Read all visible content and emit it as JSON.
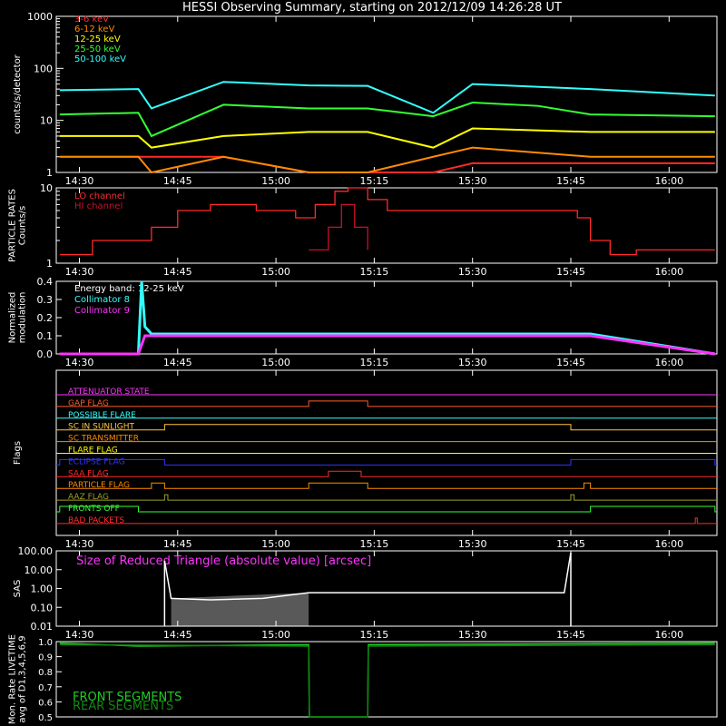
{
  "title": "HESSI Observing Summary, starting on 2012/12/09 14:26:28 UT",
  "time_ticks": [
    "14:30",
    "14:45",
    "15:00",
    "15:15",
    "15:30",
    "15:45",
    "16:00"
  ],
  "chart_data": [
    {
      "type": "line",
      "panel": "count-rates",
      "ylabel": "counts/s/detector",
      "yscale": "log",
      "ylim": [
        1,
        1000
      ],
      "y_ticks": [
        "1",
        "10",
        "100",
        "1000"
      ],
      "x_ticks": [
        "14:30",
        "14:45",
        "15:00",
        "15:15",
        "15:30",
        "15:45",
        "16:00"
      ],
      "series": [
        {
          "name": "3-6 keV",
          "color": "#ff2a2a",
          "x": [
            "14:27",
            "14:39",
            "14:52",
            "15:05",
            "15:14",
            "15:24",
            "15:30",
            "15:48",
            "16:07"
          ],
          "y": [
            2,
            2,
            2,
            1,
            1,
            1,
            1.5,
            1.5,
            1.5
          ]
        },
        {
          "name": "6-12 keV",
          "color": "#ff8c00",
          "x": [
            "14:27",
            "14:39",
            "14:41",
            "14:52",
            "15:05",
            "15:14",
            "15:24",
            "15:30",
            "15:48",
            "16:07"
          ],
          "y": [
            2,
            2,
            1,
            2,
            1,
            1,
            2,
            3,
            2,
            2
          ]
        },
        {
          "name": "12-25 keV",
          "color": "#ffff00",
          "x": [
            "14:27",
            "14:39",
            "14:41",
            "14:52",
            "15:05",
            "15:14",
            "15:24",
            "15:30",
            "15:48",
            "16:07"
          ],
          "y": [
            5,
            5,
            3,
            5,
            6,
            6,
            3,
            7,
            6,
            6
          ]
        },
        {
          "name": "25-50 keV",
          "color": "#33ff33",
          "x": [
            "14:27",
            "14:39",
            "14:41",
            "14:52",
            "15:05",
            "15:14",
            "15:24",
            "15:30",
            "15:40",
            "15:48",
            "16:07"
          ],
          "y": [
            13,
            14,
            5,
            20,
            17,
            17,
            12,
            22,
            19,
            13,
            12
          ]
        },
        {
          "name": "50-100 keV",
          "color": "#33ffff",
          "x": [
            "14:27",
            "14:39",
            "14:41",
            "14:52",
            "15:05",
            "15:14",
            "15:24",
            "15:30",
            "15:48",
            "16:07"
          ],
          "y": [
            38,
            40,
            17,
            55,
            47,
            46,
            14,
            50,
            40,
            30
          ]
        }
      ]
    },
    {
      "type": "line",
      "panel": "particle-rates",
      "ylabel": "PARTICLE RATES\nCounts/s",
      "yscale": "log",
      "ylim": [
        1,
        10
      ],
      "y_ticks": [
        "1",
        "10"
      ],
      "x_ticks": [
        "14:30",
        "14:45",
        "15:00",
        "15:15",
        "15:30",
        "15:45",
        "16:00"
      ],
      "series": [
        {
          "name": "LO channel",
          "color": "#ff2a2a",
          "x": [
            "14:27",
            "14:31",
            "14:32",
            "14:38",
            "14:41",
            "14:45",
            "14:50",
            "14:57",
            "15:03",
            "15:06",
            "15:09",
            "15:11",
            "15:14",
            "15:17",
            "15:22",
            "15:30",
            "15:38",
            "15:46",
            "15:48",
            "15:51",
            "15:55",
            "16:07"
          ],
          "y": [
            1.3,
            1.3,
            2,
            2,
            3,
            5,
            6,
            5,
            4,
            6,
            9,
            10,
            7,
            5,
            5,
            5,
            5,
            4,
            2,
            1.3,
            1.5,
            1.5
          ]
        },
        {
          "name": "HI channel",
          "color": "#c8102e",
          "x": [
            "15:05",
            "15:08",
            "15:10",
            "15:12",
            "15:14"
          ],
          "y": [
            1.5,
            3,
            6,
            3,
            1.5
          ]
        }
      ]
    },
    {
      "type": "line",
      "panel": "modulation",
      "ylabel": "Normalized\nmodulation",
      "ylim": [
        0,
        0.4
      ],
      "y_ticks": [
        "0.0",
        "0.1",
        "0.2",
        "0.3",
        "0.4"
      ],
      "x_ticks": [
        "14:30",
        "14:45",
        "15:00",
        "15:15",
        "15:30",
        "15:45",
        "16:00"
      ],
      "annotation": "Energy band: 12-25 keV",
      "series": [
        {
          "name": "Collimator 8",
          "color": "#33ffff",
          "x": [
            "14:27",
            "14:39",
            "14:39.5",
            "14:40",
            "14:41",
            "15:05",
            "15:14",
            "15:48",
            "16:07"
          ],
          "y": [
            0,
            0,
            0.4,
            0.15,
            0.11,
            0.11,
            0.11,
            0.11,
            0
          ]
        },
        {
          "name": "Collimator 9",
          "color": "#ff33ff",
          "x": [
            "14:27",
            "14:39",
            "14:40",
            "15:05",
            "15:14",
            "15:48",
            "16:07"
          ],
          "y": [
            0,
            0,
            0.1,
            0.1,
            0.1,
            0.1,
            0
          ]
        }
      ]
    },
    {
      "type": "timeline",
      "panel": "flags",
      "ylabel": "Flags",
      "x_ticks": [
        "14:30",
        "14:45",
        "15:00",
        "15:15",
        "15:30",
        "15:45",
        "16:00"
      ],
      "flags": [
        {
          "name": "ATTENUATOR STATE",
          "color": "#ff33ff",
          "on": []
        },
        {
          "name": "GAP FLAG",
          "color": "#ff5a2a",
          "on": [
            [
              "15:05",
              "15:14"
            ]
          ]
        },
        {
          "name": "POSSIBLE FLARE",
          "color": "#33ffff",
          "on": []
        },
        {
          "name": "SC IN SUNLIGHT",
          "color": "#ffc83c",
          "on": [
            [
              "14:43",
              "15:45"
            ]
          ]
        },
        {
          "name": "SC TRANSMITTER",
          "color": "#ff8c00",
          "on": []
        },
        {
          "name": "FLARE FLAG",
          "color": "#ffff00",
          "on": []
        },
        {
          "name": "ECLIPSE FLAG",
          "color": "#3232ff",
          "on": [
            [
              "14:27",
              "14:43"
            ],
            [
              "15:45",
              "16:07"
            ]
          ]
        },
        {
          "name": "SAA FLAG",
          "color": "#ff2a2a",
          "on": [
            [
              "15:08",
              "15:13"
            ]
          ]
        },
        {
          "name": "PARTICLE FLAG",
          "color": "#ff8c00",
          "on": [
            [
              "14:41",
              "14:43"
            ],
            [
              "15:05",
              "15:14"
            ],
            [
              "15:47",
              "15:48"
            ]
          ]
        },
        {
          "name": "AAZ FLAG",
          "color": "#9ba028",
          "on": [
            [
              "14:43",
              "14:43.5"
            ],
            [
              "15:45",
              "15:45.5"
            ]
          ]
        },
        {
          "name": "FRONTS OFF",
          "color": "#33ff33",
          "on": [
            [
              "14:27",
              "14:39"
            ],
            [
              "15:48",
              "16:07"
            ]
          ]
        },
        {
          "name": "BAD PACKETS",
          "color": "#ff2a2a",
          "on": [
            [
              "16:04",
              "16:04.3"
            ]
          ]
        }
      ]
    },
    {
      "type": "line",
      "panel": "sas",
      "ylabel": "SAS",
      "yscale": "log",
      "ylim": [
        0.01,
        100
      ],
      "y_ticks": [
        "0.01",
        "0.10",
        "1.00",
        "10.00",
        "100.00"
      ],
      "x_ticks": [
        "14:30",
        "14:45",
        "15:00",
        "15:15",
        "15:30",
        "15:45",
        "16:00"
      ],
      "annotation": "Size of Reduced Triangle (absolute value) [arcsec]",
      "series": [
        {
          "name": "SAS",
          "color": "#ffffff",
          "x": [
            "14:43",
            "14:44",
            "14:50",
            "14:58",
            "15:05",
            "15:15",
            "15:30",
            "15:44",
            "15:45"
          ],
          "y": [
            30,
            0.3,
            0.25,
            0.3,
            0.6,
            0.6,
            0.6,
            0.6,
            80
          ]
        }
      ]
    },
    {
      "type": "line",
      "panel": "livetime",
      "ylabel": "Mon. Rate LIVETIME\navg of D1,3,4,5,6,9",
      "ylim": [
        0.5,
        1.0
      ],
      "y_ticks": [
        "0.5",
        "0.6",
        "0.7",
        "0.8",
        "0.9",
        "1.0"
      ],
      "series": [
        {
          "name": "FRONT SEGMENTS",
          "color": "#22cc22",
          "x": [
            "14:27",
            "14:39",
            "15:05",
            "15:05.1",
            "15:14",
            "15:14.1",
            "16:07"
          ],
          "y": [
            0.99,
            0.97,
            0.98,
            0.5,
            0.5,
            0.98,
            0.99
          ]
        },
        {
          "name": "REAR SEGMENTS",
          "color": "#118811",
          "x": [
            "14:27",
            "15:05",
            "15:05.1",
            "15:14",
            "15:14.1",
            "16:07"
          ],
          "y": [
            0.98,
            0.97,
            0.5,
            0.5,
            0.97,
            0.98
          ]
        }
      ]
    }
  ]
}
